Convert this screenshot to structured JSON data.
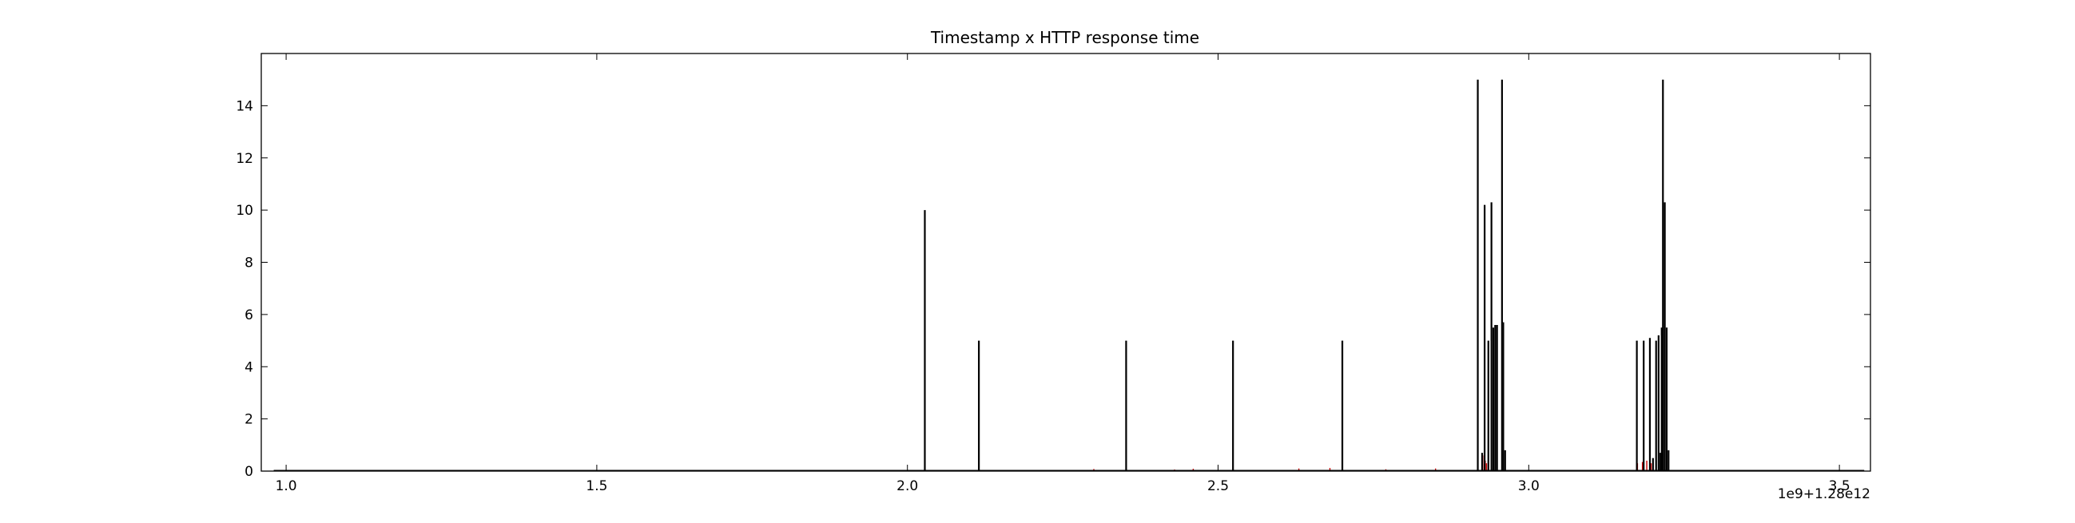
{
  "chart_data": {
    "type": "line",
    "title": "Timestamp x HTTP response time",
    "xlabel": "",
    "ylabel": "",
    "x_offset_label": "1e9+1.28e12",
    "xlim": [
      0.96,
      3.55
    ],
    "ylim": [
      0,
      16
    ],
    "x_ticks": [
      1.0,
      1.5,
      2.0,
      2.5,
      3.0,
      3.5
    ],
    "x_tick_labels": [
      "1.0",
      "1.5",
      "2.0",
      "2.5",
      "3.0",
      "3.5"
    ],
    "y_ticks": [
      0,
      2,
      4,
      6,
      8,
      10,
      12,
      14
    ],
    "y_tick_labels": [
      "0",
      "2",
      "4",
      "6",
      "8",
      "10",
      "12",
      "14"
    ],
    "grid": false,
    "colors": {
      "main": "#000000",
      "secondary": "#cc0000"
    },
    "series": [
      {
        "color": "#000000",
        "spikes": [
          {
            "x": 2.028,
            "y": 10.0
          },
          {
            "x": 2.115,
            "y": 5.0
          },
          {
            "x": 2.352,
            "y": 5.0
          },
          {
            "x": 2.524,
            "y": 5.0
          },
          {
            "x": 2.7,
            "y": 5.0
          },
          {
            "x": 2.918,
            "y": 15.0
          },
          {
            "x": 2.925,
            "y": 0.7
          },
          {
            "x": 2.929,
            "y": 10.2
          },
          {
            "x": 2.935,
            "y": 5.0
          },
          {
            "x": 2.94,
            "y": 10.3
          },
          {
            "x": 2.943,
            "y": 5.5
          },
          {
            "x": 2.946,
            "y": 5.6
          },
          {
            "x": 2.949,
            "y": 5.6
          },
          {
            "x": 2.957,
            "y": 15.0
          },
          {
            "x": 2.959,
            "y": 5.7
          },
          {
            "x": 2.962,
            "y": 0.8
          },
          {
            "x": 3.174,
            "y": 5.0
          },
          {
            "x": 3.185,
            "y": 5.0
          },
          {
            "x": 3.195,
            "y": 5.1
          },
          {
            "x": 3.2,
            "y": 0.5
          },
          {
            "x": 3.205,
            "y": 5.0
          },
          {
            "x": 3.209,
            "y": 5.2
          },
          {
            "x": 3.212,
            "y": 0.7
          },
          {
            "x": 3.214,
            "y": 5.5
          },
          {
            "x": 3.216,
            "y": 15.0
          },
          {
            "x": 3.219,
            "y": 10.3
          },
          {
            "x": 3.222,
            "y": 5.5
          },
          {
            "x": 3.225,
            "y": 0.8
          }
        ]
      },
      {
        "color": "#cc0000",
        "points": [
          {
            "x": 2.3,
            "y": 0.08
          },
          {
            "x": 2.43,
            "y": 0.06
          },
          {
            "x": 2.46,
            "y": 0.09
          },
          {
            "x": 2.63,
            "y": 0.1
          },
          {
            "x": 2.68,
            "y": 0.12
          },
          {
            "x": 2.77,
            "y": 0.07
          },
          {
            "x": 2.85,
            "y": 0.1
          },
          {
            "x": 2.926,
            "y": 0.6
          },
          {
            "x": 2.93,
            "y": 0.4
          },
          {
            "x": 2.932,
            "y": 0.3
          },
          {
            "x": 3.175,
            "y": 0.3
          },
          {
            "x": 3.183,
            "y": 0.35
          },
          {
            "x": 3.19,
            "y": 0.4
          },
          {
            "x": 3.197,
            "y": 0.3
          }
        ]
      }
    ]
  }
}
